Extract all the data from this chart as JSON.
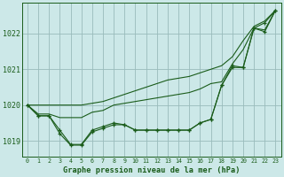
{
  "xlabel": "Graphe pression niveau de la mer (hPa)",
  "xlim": [
    -0.5,
    23.5
  ],
  "ylim": [
    1018.55,
    1022.85
  ],
  "yticks": [
    1019,
    1020,
    1021,
    1022
  ],
  "xticks": [
    0,
    1,
    2,
    3,
    4,
    5,
    6,
    7,
    8,
    9,
    10,
    11,
    12,
    13,
    14,
    15,
    16,
    17,
    18,
    19,
    20,
    21,
    22,
    23
  ],
  "bg_color": "#cce8e8",
  "grid_color": "#99bbbb",
  "line_color": "#1a5c1a",
  "series_with_markers": [
    [
      1020.0,
      1019.7,
      1019.7,
      1019.3,
      1018.9,
      1018.9,
      1019.3,
      1019.4,
      1019.5,
      1019.45,
      1019.3,
      1019.3,
      1019.3,
      1019.3,
      1019.3,
      1019.3,
      1019.5,
      1019.6,
      1020.55,
      1021.1,
      1021.05,
      1022.15,
      1022.3,
      1022.65
    ],
    [
      1020.0,
      1019.7,
      1019.7,
      1019.2,
      1018.88,
      1018.88,
      1019.25,
      1019.35,
      1019.45,
      1019.45,
      1019.3,
      1019.3,
      1019.3,
      1019.3,
      1019.3,
      1019.3,
      1019.5,
      1019.6,
      1020.55,
      1021.05,
      1021.05,
      1022.15,
      1022.05,
      1022.65
    ]
  ],
  "series_no_markers": [
    [
      1020.0,
      1019.75,
      1019.75,
      1019.65,
      1019.65,
      1019.65,
      1019.8,
      1019.85,
      1020.0,
      1020.05,
      1020.1,
      1020.15,
      1020.2,
      1020.25,
      1020.3,
      1020.35,
      1020.45,
      1020.6,
      1020.65,
      1021.15,
      1021.55,
      1022.15,
      1022.1,
      1022.65
    ],
    [
      1020.0,
      1020.0,
      1020.0,
      1020.0,
      1020.0,
      1020.0,
      1020.05,
      1020.1,
      1020.2,
      1020.3,
      1020.4,
      1020.5,
      1020.6,
      1020.7,
      1020.75,
      1020.8,
      1020.9,
      1021.0,
      1021.1,
      1021.35,
      1021.8,
      1022.2,
      1022.35,
      1022.65
    ]
  ]
}
